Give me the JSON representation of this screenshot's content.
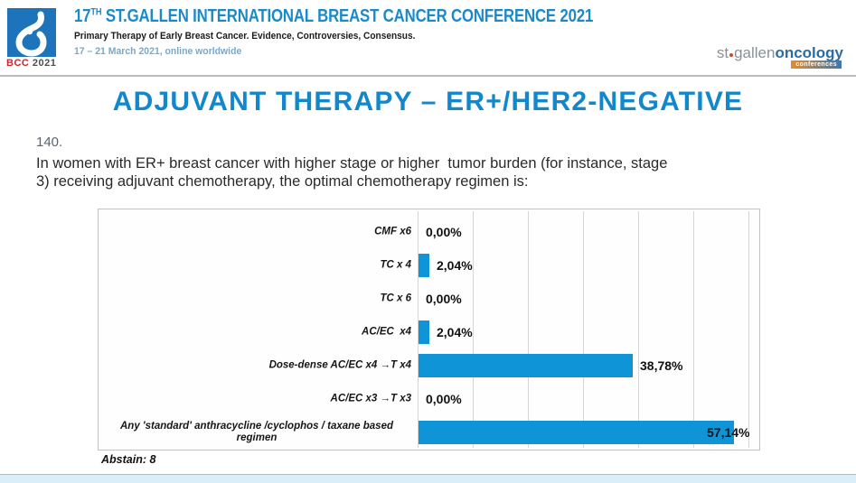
{
  "header": {
    "logo": {
      "bcc": "BCC",
      "year": "2021"
    },
    "title_num": "17",
    "title_sup": "TH",
    "title_rest": " ST.GALLEN INTERNATIONAL BREAST CANCER CONFERENCE 2021",
    "subtitle": "Primary Therapy of Early Breast Cancer. Evidence, Controversies, Consensus.",
    "date_line": "17 – 21 March 2021, online worldwide",
    "right_logo": {
      "st": "st",
      "gallen": "gallen",
      "oncology": "oncology",
      "badge": "conferences"
    }
  },
  "slide": {
    "title": "ADJUVANT THERAPY – ER+/HER2-NEGATIVE",
    "question_number": "140.",
    "question_lines": [
      "In women with ER+ breast cancer with higher stage or higher  tumor burden (for instance, stage",
      "3) receiving adjuvant chemotherapy, the optimal chemotherapy regimen is:"
    ],
    "abstain": "Abstain: 8"
  },
  "chart_data": {
    "type": "bar",
    "orientation": "horizontal",
    "title": "",
    "categories": [
      "CMF x6",
      "TC x 4",
      "TC x 6",
      "AC/EC  x4",
      "Dose-dense AC/EC x4 →T x4",
      "AC/EC x3 →T x3",
      "Any 'standard' anthracycline /cyclophos / taxane based regimen"
    ],
    "values": [
      0,
      2.04,
      0,
      2.04,
      38.78,
      0,
      57.14
    ],
    "value_labels": [
      "0,00%",
      "2,04%",
      "0,00%",
      "2,04%",
      "38,78%",
      "0,00%",
      "57,14%"
    ],
    "xlim": [
      0,
      60
    ],
    "gridline_interval_pct": 10,
    "grid": true,
    "legend": false,
    "bar_color": "#1094d8",
    "abstain_note": "Abstain: 8"
  },
  "colors": {
    "accent_blue": "#1287cb",
    "header_blue": "#1b8ac9",
    "bar_blue": "#1094d8",
    "bcc_logo_blue": "#1d74bb",
    "bcc_red": "#c9252c",
    "date_light_blue": "#7aa9c9",
    "bottom_strip": "#d9eef8",
    "gridline": "#d6d6d6"
  }
}
